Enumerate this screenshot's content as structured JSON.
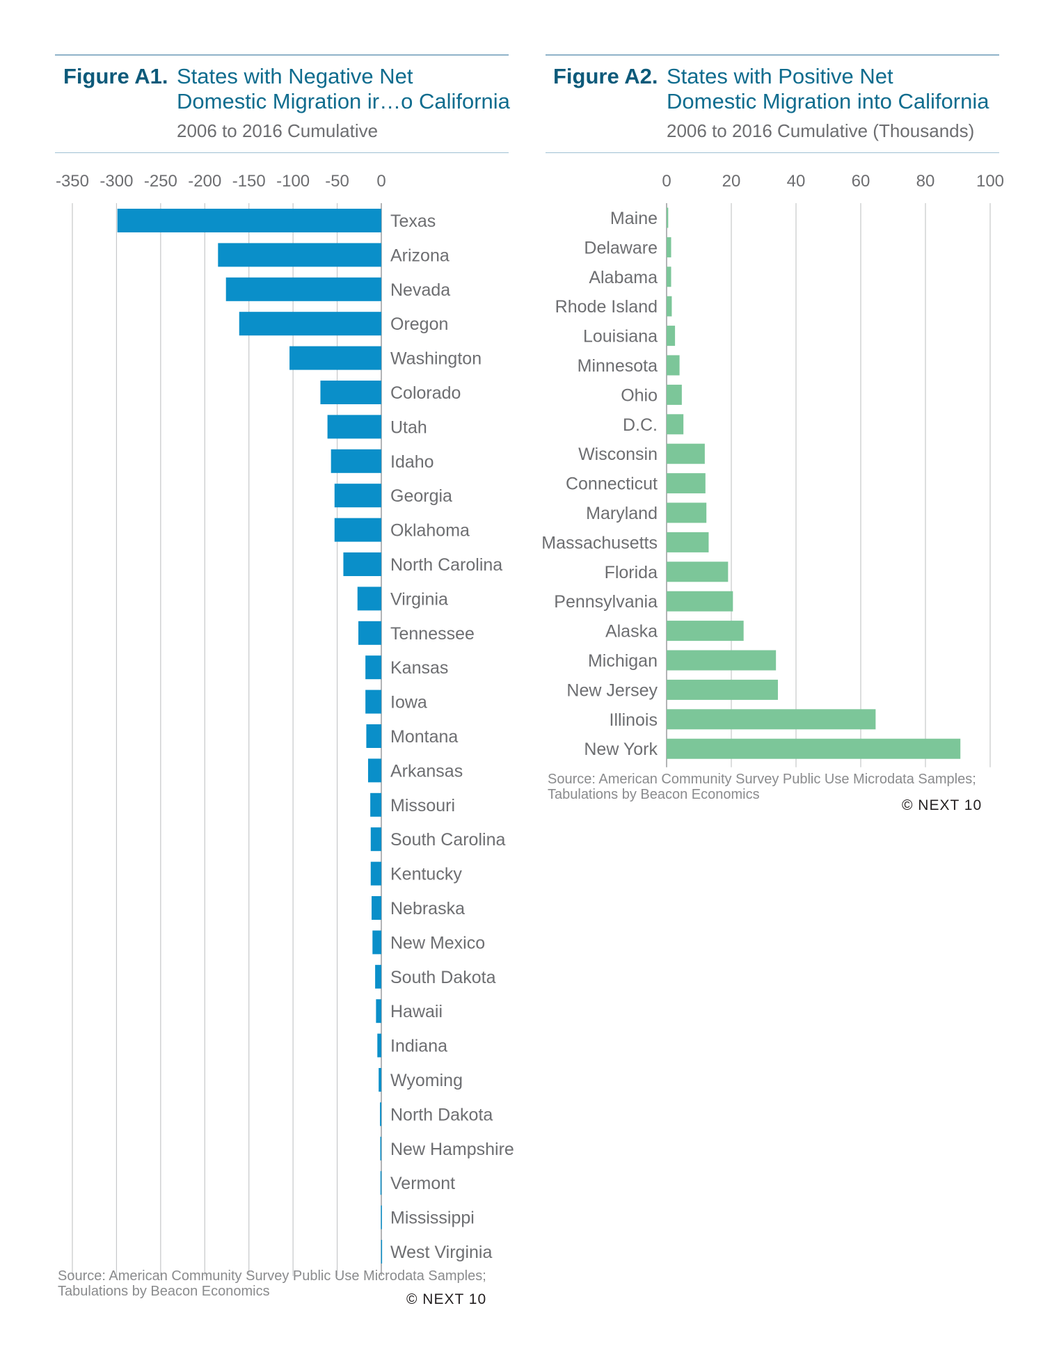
{
  "figures": [
    {
      "number": "Figure A1.",
      "title_line1": "States with Negative Net",
      "title_line2": "Domestic Migration ir…o California",
      "subtitle": "2006 to 2016 Cumulative",
      "source_line1": "Source: American Community Survey Public Use Microdata Samples;",
      "source_line2": "Tabulations by Beacon Economics",
      "copyright": "© NEXT 10"
    },
    {
      "number": "Figure A2.",
      "title_line1": "States with Positive Net",
      "title_line2": "Domestic Migration into California",
      "subtitle": "2006 to 2016 Cumulative (Thousands)",
      "source_line1": "Source: American Community Survey Public Use Microdata Samples;",
      "source_line2": "Tabulations by Beacon Economics",
      "copyright": "© NEXT 10"
    }
  ],
  "chart_data": [
    {
      "type": "bar",
      "orientation": "horizontal",
      "title": "States with Negative Net Domestic Migration ir…o California",
      "subtitle": "2006 to 2016 Cumulative",
      "xlim": [
        -350,
        0
      ],
      "ticks": [
        -350,
        -300,
        -250,
        -200,
        -150,
        -100,
        -50,
        0
      ],
      "tick_labels": [
        "-350",
        "-300",
        "-250",
        "-200",
        "-150",
        "-100",
        "-50",
        "0"
      ],
      "grid": true,
      "color": "#0a8fc9",
      "categories": [
        "Texas",
        "Arizona",
        "Nevada",
        "Oregon",
        "Washington",
        "Colorado",
        "Utah",
        "Idaho",
        "Georgia",
        "Oklahoma",
        "North Carolina",
        "Virginia",
        "Tennessee",
        "Kansas",
        "Iowa",
        "Montana",
        "Arkansas",
        "Missouri",
        "South Carolina",
        "Kentucky",
        "Nebraska",
        "New Mexico",
        "South Dakota",
        "Hawaii",
        "Indiana",
        "Wyoming",
        "North Dakota",
        "New Hampshire",
        "Vermont",
        "Mississippi",
        "West Virginia"
      ],
      "values": [
        -299,
        -185,
        -176,
        -161,
        -104,
        -69,
        -61,
        -57,
        -53,
        -53,
        -43,
        -27,
        -26,
        -18,
        -18,
        -17,
        -15,
        -12.5,
        -12,
        -12,
        -11,
        -10,
        -7,
        -6,
        -4.5,
        -3,
        -1.5,
        -1.2,
        -1,
        -0.5,
        -0.3
      ]
    },
    {
      "type": "bar",
      "orientation": "horizontal",
      "title": "States with Positive Net Domestic Migration into California",
      "subtitle": "2006 to 2016 Cumulative (Thousands)",
      "xlim": [
        0,
        100
      ],
      "ticks": [
        0,
        20,
        40,
        60,
        80,
        100
      ],
      "tick_labels": [
        "0",
        "20",
        "40",
        "60",
        "80",
        "100"
      ],
      "grid": true,
      "color": "#7cc699",
      "categories": [
        "Maine",
        "Delaware",
        "Alabama",
        "Rhode Island",
        "Louisiana",
        "Minnesota",
        "Ohio",
        "D.C.",
        "Wisconsin",
        "Connecticut",
        "Maryland",
        "Massachusetts",
        "Florida",
        "Pennsylvania",
        "Alaska",
        "Michigan",
        "New Jersey",
        "Illinois",
        "New York"
      ],
      "values": [
        0.5,
        1.4,
        1.4,
        1.6,
        2.6,
        4.0,
        4.7,
        5.2,
        11.8,
        12.0,
        12.3,
        13.0,
        19.0,
        20.5,
        23.8,
        33.8,
        34.4,
        64.6,
        90.8
      ]
    }
  ]
}
